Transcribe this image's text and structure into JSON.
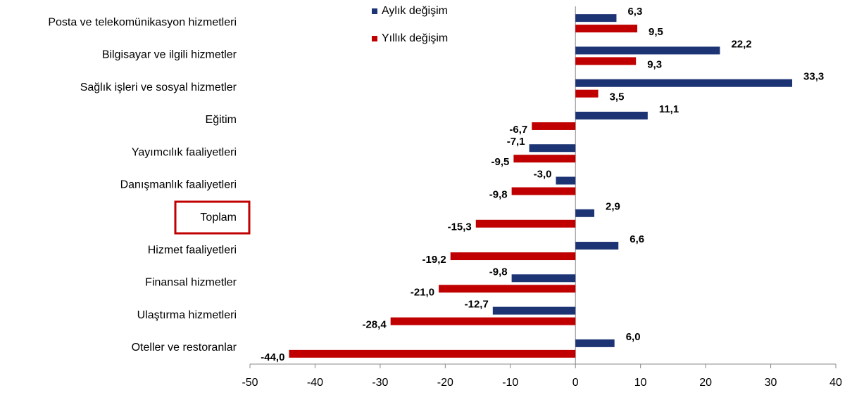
{
  "chart_data": {
    "type": "hbar",
    "categories": [
      "Posta ve telekomünikasyon hizmetleri",
      "Bilgisayar ve ilgili hizmetler",
      "Sağlık işleri ve sosyal hizmetler",
      "Eğitim",
      "Yayımcılık faaliyetleri",
      "Danışmanlık faaliyetleri",
      "Toplam",
      "Hizmet faaliyetleri",
      "Finansal hizmetler",
      "Ulaştırma hizmetleri",
      "Oteller ve restoranlar"
    ],
    "series": [
      {
        "name": "Aylık değişim",
        "color": "#1c3374",
        "values": [
          6.3,
          22.2,
          33.3,
          11.1,
          -7.1,
          -3.0,
          2.9,
          6.6,
          -9.8,
          -12.7,
          6.0
        ],
        "value_labels": [
          "6,3",
          "22,2",
          "33,3",
          "11,1",
          "-7,1",
          "-3,0",
          "2,9",
          "6,6",
          "-9,8",
          "-12,7",
          "6,0"
        ]
      },
      {
        "name": "Yıllık değişim",
        "color": "#c00000",
        "values": [
          9.5,
          9.3,
          3.5,
          -6.7,
          -9.5,
          -9.8,
          -15.3,
          -19.2,
          -21.0,
          -28.4,
          -44.0
        ],
        "value_labels": [
          "9,5",
          "9,3",
          "3,5",
          "-6,7",
          "-9,5",
          "-9,8",
          "-15,3",
          "-19,2",
          "-21,0",
          "-28,4",
          "-44,0"
        ]
      }
    ],
    "xlim": [
      -50,
      40
    ],
    "xticks": [
      -50,
      -40,
      -30,
      -20,
      -10,
      0,
      10,
      20,
      30,
      40
    ],
    "legend": "top"
  }
}
